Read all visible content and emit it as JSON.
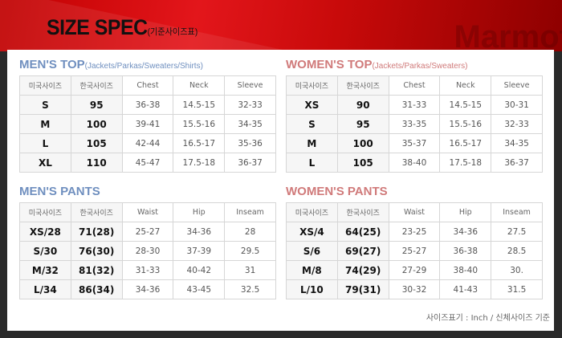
{
  "header": {
    "title": "SIZE SPEC",
    "subtitle": "(기준사이즈표)",
    "watermark": "Marmot",
    "colors": {
      "banner": "#d40d12",
      "background": "#2a2a2a"
    }
  },
  "sections": [
    {
      "title": "MEN'S TOP",
      "note": "(Jackets/Parkas/Sweaters/Shirts)",
      "color": "#6f8fbf",
      "columns": [
        "미국사이즈",
        "한국사이즈",
        "Chest",
        "Neck",
        "Sleeve"
      ],
      "rows": [
        [
          "S",
          "95",
          "36-38",
          "14.5-15",
          "32-33"
        ],
        [
          "M",
          "100",
          "39-41",
          "15.5-16",
          "34-35"
        ],
        [
          "L",
          "105",
          "42-44",
          "16.5-17",
          "35-36"
        ],
        [
          "XL",
          "110",
          "45-47",
          "17.5-18",
          "36-37"
        ]
      ]
    },
    {
      "title": "WOMEN'S TOP",
      "note": "(Jackets/Parkas/Sweaters)",
      "color": "#d07a7a",
      "columns": [
        "미국사이즈",
        "한국사이즈",
        "Chest",
        "Neck",
        "Sleeve"
      ],
      "rows": [
        [
          "XS",
          "90",
          "31-33",
          "14.5-15",
          "30-31"
        ],
        [
          "S",
          "95",
          "33-35",
          "15.5-16",
          "32-33"
        ],
        [
          "M",
          "100",
          "35-37",
          "16.5-17",
          "34-35"
        ],
        [
          "L",
          "105",
          "38-40",
          "17.5-18",
          "36-37"
        ]
      ]
    },
    {
      "title": "MEN'S PANTS",
      "note": "",
      "color": "#6f8fbf",
      "columns": [
        "미국사이즈",
        "한국사이즈",
        "Waist",
        "Hip",
        "Inseam"
      ],
      "rows": [
        [
          "XS/28",
          "71(28)",
          "25-27",
          "34-36",
          "28"
        ],
        [
          "S/30",
          "76(30)",
          "28-30",
          "37-39",
          "29.5"
        ],
        [
          "M/32",
          "81(32)",
          "31-33",
          "40-42",
          "31"
        ],
        [
          "L/34",
          "86(34)",
          "34-36",
          "43-45",
          "32.5"
        ]
      ]
    },
    {
      "title": "WOMEN'S PANTS",
      "note": "",
      "color": "#d07a7a",
      "columns": [
        "미국사이즈",
        "한국사이즈",
        "Waist",
        "Hip",
        "Inseam"
      ],
      "rows": [
        [
          "XS/4",
          "64(25)",
          "23-25",
          "34-36",
          "27.5"
        ],
        [
          "S/6",
          "69(27)",
          "25-27",
          "36-38",
          "28.5"
        ],
        [
          "M/8",
          "74(29)",
          "27-29",
          "38-40",
          "30."
        ],
        [
          "L/10",
          "79(31)",
          "30-32",
          "41-43",
          "31.5"
        ]
      ]
    }
  ],
  "footer": {
    "note": "사이즈표기 : Inch / 신체사이즈 기준"
  }
}
